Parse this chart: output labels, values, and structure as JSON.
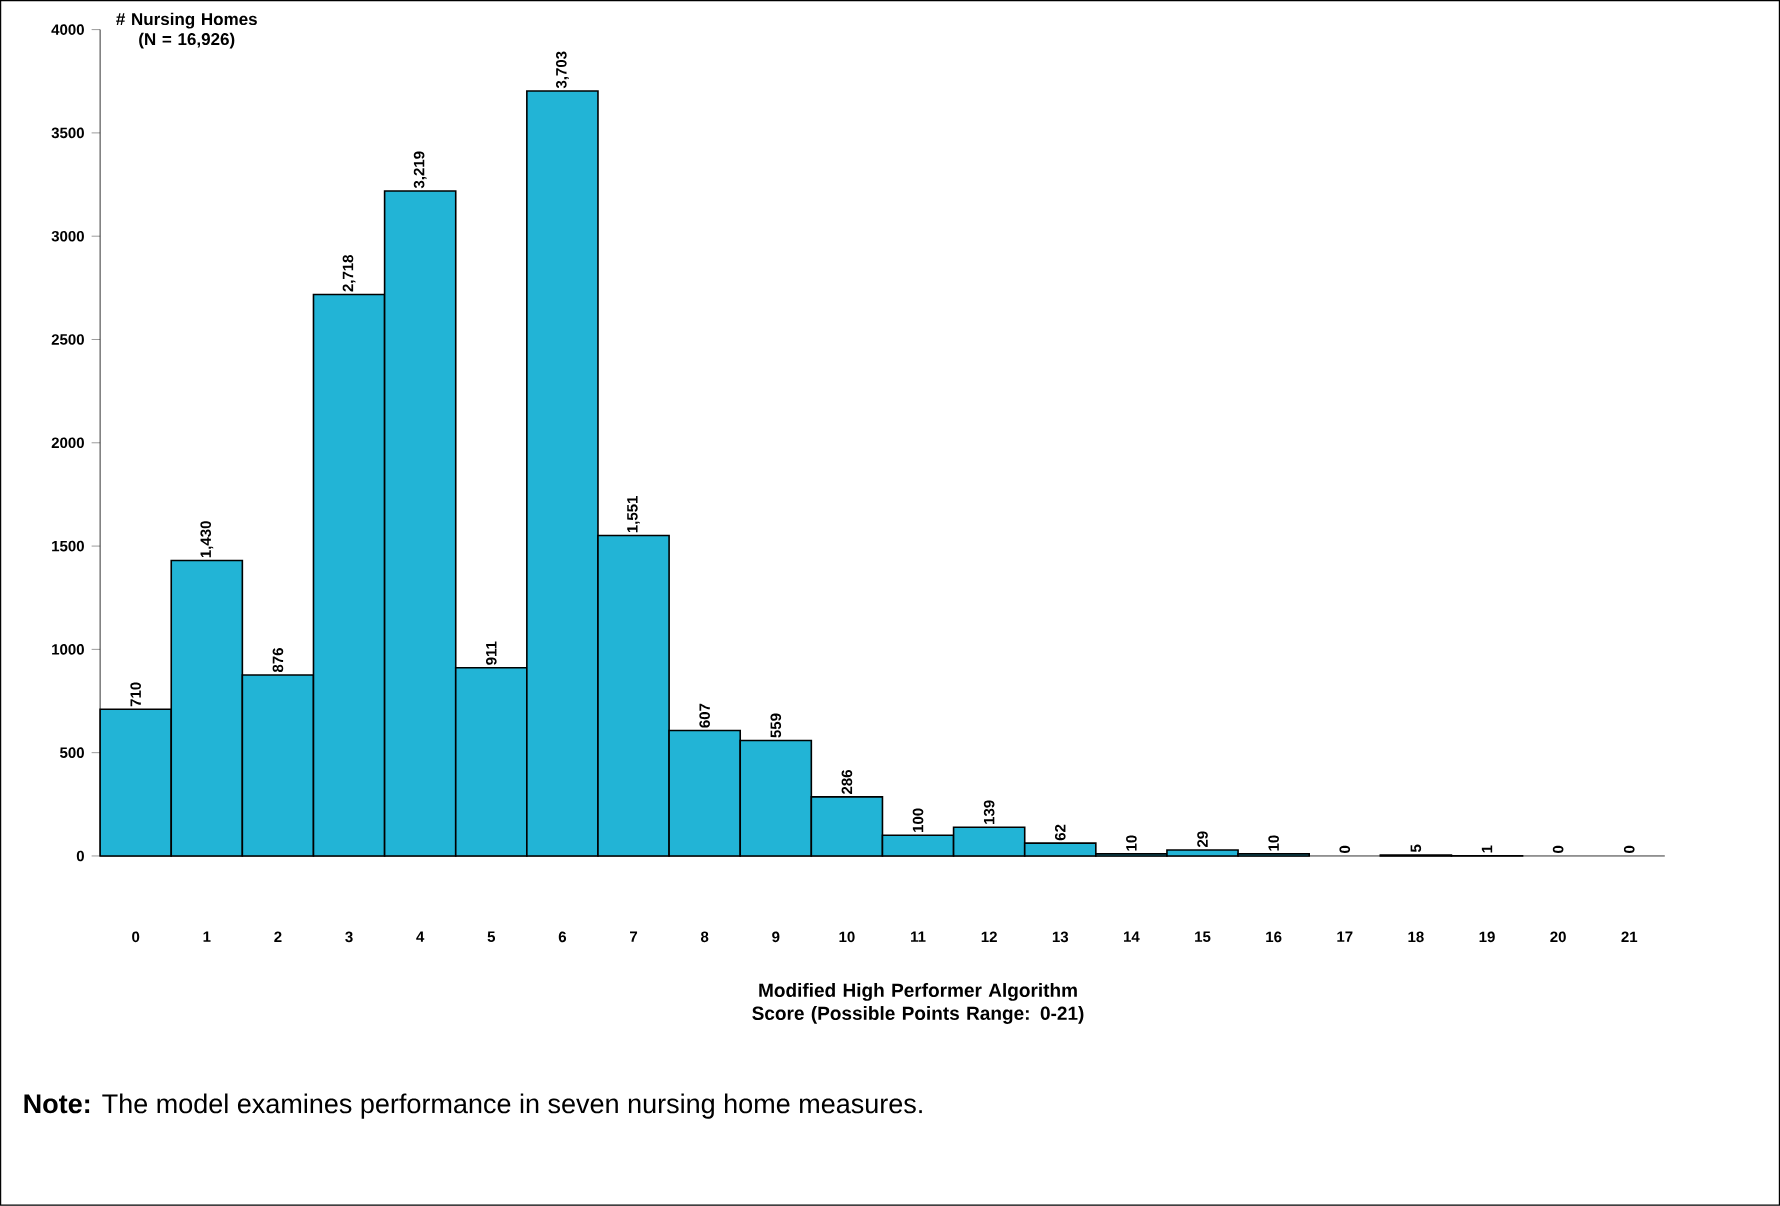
{
  "chart_data": {
    "type": "bar",
    "ylabel": "# Nursing Homes (N = 16,926)",
    "xlabel": "Modified High Performer Algorithm Score (Possible Points Range: 0-21)",
    "categories": [
      "0",
      "1",
      "2",
      "3",
      "4",
      "5",
      "6",
      "7",
      "8",
      "9",
      "10",
      "11",
      "12",
      "13",
      "14",
      "15",
      "16",
      "17",
      "18",
      "19",
      "20",
      "21"
    ],
    "values": [
      710,
      1430,
      876,
      2718,
      3219,
      911,
      3703,
      1551,
      607,
      559,
      286,
      100,
      139,
      62,
      10,
      29,
      10,
      0,
      5,
      1,
      0,
      0
    ],
    "value_labels": [
      "710",
      "1,430",
      "876",
      "2,718",
      "3,219",
      "911",
      "3,703",
      "1,551",
      "607",
      "559",
      "286",
      "100",
      "139",
      "62",
      "10",
      "29",
      "10",
      "0",
      "5",
      "1",
      "0",
      "0"
    ],
    "color": "#22b4d6",
    "ylim": [
      0,
      4000
    ],
    "yticks": [
      0,
      500,
      1000,
      1500,
      2000,
      2500,
      3000,
      3500,
      4000
    ],
    "annotations": [
      "**Note:** The model examines performance in seven nursing home measures."
    ]
  }
}
